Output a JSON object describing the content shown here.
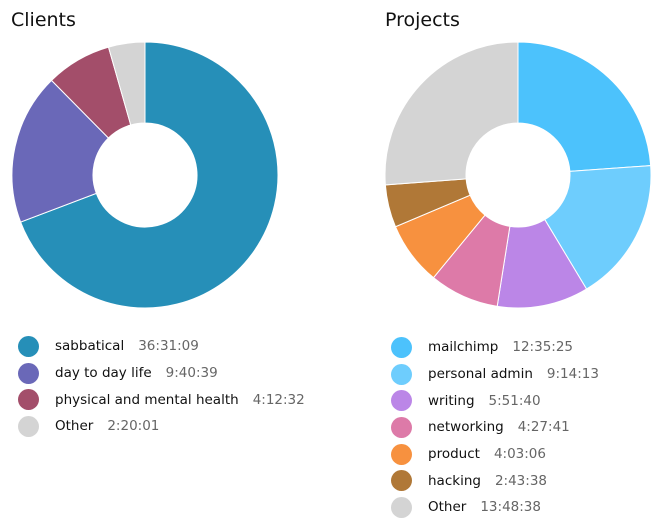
{
  "chart_data": [
    {
      "type": "pie",
      "title": "Clients",
      "donut": true,
      "entries": [
        {
          "label": "sabbatical",
          "value": "36:31:09",
          "color": "#268fb8"
        },
        {
          "label": "day to day life",
          "value": "9:40:39",
          "color": "#6a68b8"
        },
        {
          "label": "physical and mental health",
          "value": "4:12:32",
          "color": "#a34e6a"
        },
        {
          "label": "Other",
          "value": "2:20:01",
          "color": "#d4d4d4"
        }
      ]
    },
    {
      "type": "pie",
      "title": "Projects",
      "donut": true,
      "entries": [
        {
          "label": "mailchimp",
          "value": "12:35:25",
          "color": "#4cc2fc"
        },
        {
          "label": "personal admin",
          "value": "9:14:13",
          "color": "#6ecdfd"
        },
        {
          "label": "writing",
          "value": "5:51:40",
          "color": "#bb86e7"
        },
        {
          "label": "networking",
          "value": "4:27:41",
          "color": "#dd7aa8"
        },
        {
          "label": "product",
          "value": "4:03:06",
          "color": "#f7913f"
        },
        {
          "label": "hacking",
          "value": "2:43:38",
          "color": "#b07837"
        },
        {
          "label": "Other",
          "value": "13:48:38",
          "color": "#d4d4d4"
        }
      ]
    }
  ]
}
